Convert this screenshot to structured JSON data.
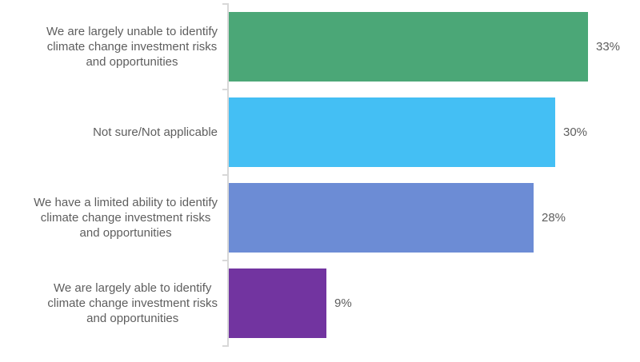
{
  "chart_data": {
    "type": "bar",
    "orientation": "horizontal",
    "title": "",
    "xlabel": "",
    "ylabel": "",
    "categories": [
      "We are largely unable to identify climate change investment risks and opportunities",
      "Not sure/Not applicable",
      "We have a limited ability to identify climate change investment risks and opportunities",
      "We are largely able to identify climate change investment risks and opportunities"
    ],
    "categories_display": [
      "We are largely unable to identify\nclimate change investment risks\nand opportunities",
      "Not sure/Not applicable",
      "We have a limited ability to identify\nclimate change investment risks\nand opportunities",
      "We are largely able to identify\nclimate change investment risks\nand opportunities"
    ],
    "values": [
      33,
      30,
      28,
      9
    ],
    "value_labels": [
      "33%",
      "30%",
      "28%",
      "9%"
    ],
    "bar_colors": [
      "#4ba777",
      "#44bff4",
      "#6c8cd5",
      "#7234a0"
    ],
    "xlim": [
      0,
      37.5
    ],
    "grid": false,
    "legend": false,
    "axis_color": "#d8d8d8",
    "text_color": "#5e5e5e",
    "background": "#ffffff"
  }
}
